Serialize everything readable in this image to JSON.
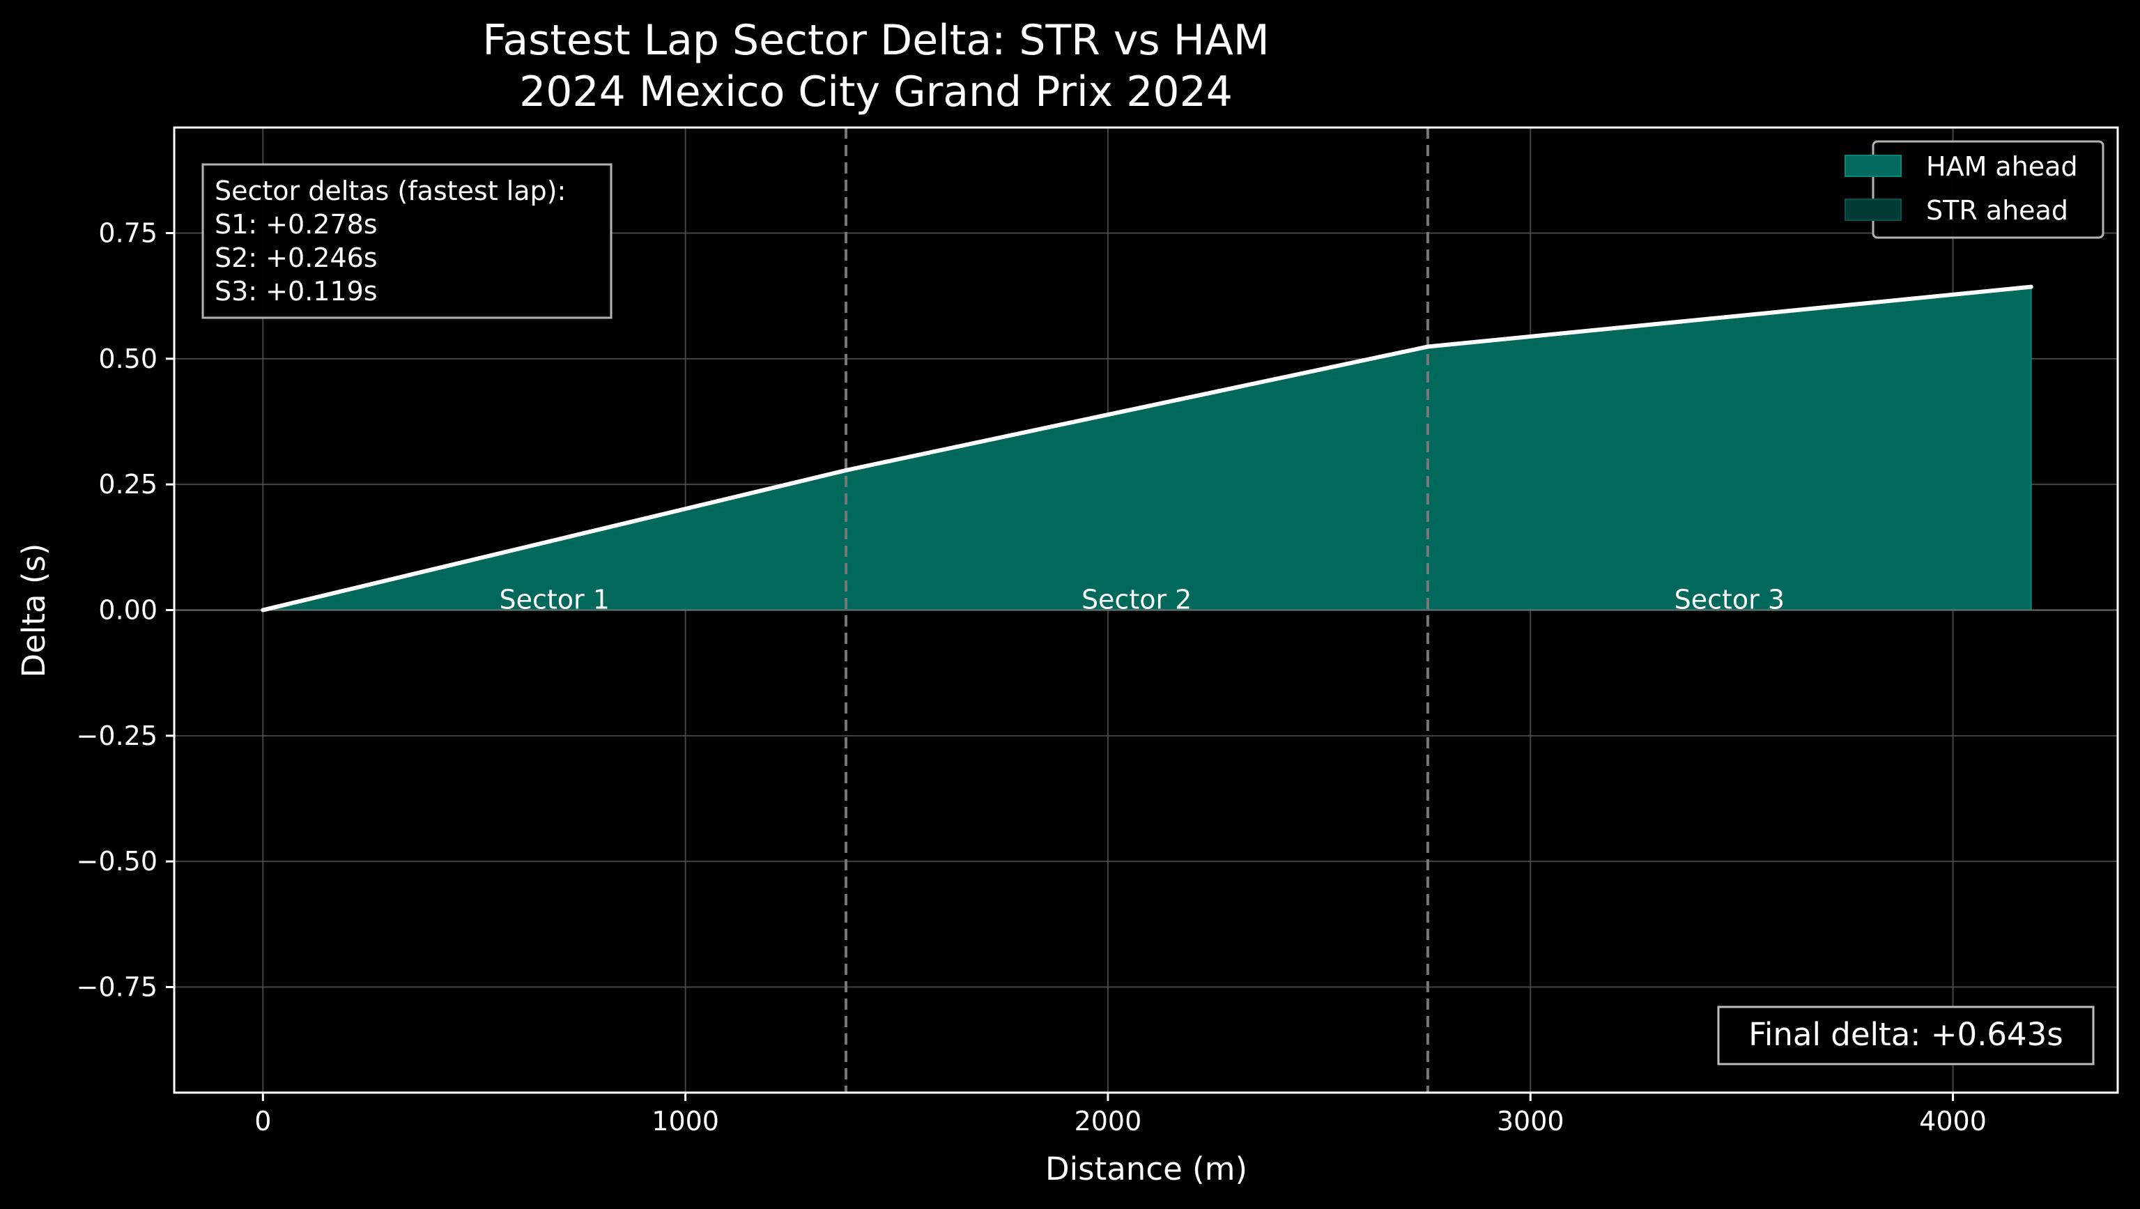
{
  "chart_data": {
    "type": "area",
    "title": "Fastest Lap Sector Delta: STR vs HAM",
    "subtitle": "2024 Mexico City Grand Prix 2024",
    "xlabel": "Distance (m)",
    "ylabel": "Delta (s)",
    "xlim": [
      -210,
      4390
    ],
    "ylim": [
      -0.96,
      0.96
    ],
    "xticks": [
      0,
      1000,
      2000,
      3000,
      4000
    ],
    "xtick_labels": [
      "0",
      "1000",
      "2000",
      "3000",
      "4000"
    ],
    "yticks": [
      0.75,
      0.5,
      0.25,
      0.0,
      -0.25,
      -0.5,
      -0.75
    ],
    "ytick_labels": [
      "0.75",
      "0.50",
      "0.25",
      "0.00",
      "−0.25",
      "−0.50",
      "−0.75"
    ],
    "grid": true,
    "series": [
      {
        "name": "Delta",
        "x": [
          0,
          1380,
          2757,
          4185
        ],
        "y": [
          0.0,
          0.278,
          0.524,
          0.643
        ]
      }
    ],
    "fill_series": [
      {
        "name": "HAM ahead",
        "color": "#00695c"
      },
      {
        "name": "STR ahead",
        "color": "#003b36"
      }
    ],
    "sector_boundaries": [
      1380,
      2757
    ],
    "sector_labels": [
      {
        "x": 690,
        "text": "Sector 1"
      },
      {
        "x": 2068,
        "text": "Sector 2"
      },
      {
        "x": 3471,
        "text": "Sector 3"
      }
    ],
    "legend": {
      "position": "top-right",
      "entries": [
        "HAM ahead",
        "STR ahead"
      ]
    },
    "stats_box": {
      "lines": [
        "Sector deltas (fastest lap):",
        "S1: +0.278s",
        "S2: +0.246s",
        "S3: +0.119s"
      ]
    },
    "final_delta": "Final delta: +0.643s"
  },
  "colors": {
    "background": "#000000",
    "line": "#ffffff",
    "ham_fill": "#00695c",
    "str_fill": "#003b36",
    "grid": "#555555",
    "sector_line": "#777777"
  }
}
